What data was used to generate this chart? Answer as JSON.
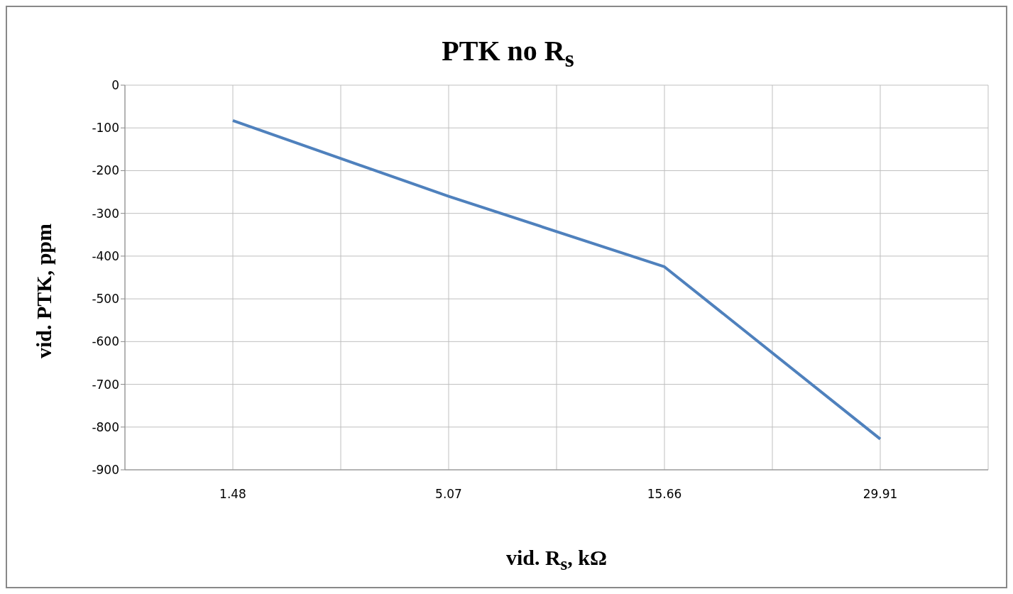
{
  "chart_data": {
    "type": "line",
    "title": "PTK no R$_{s}$",
    "xlabel": "vid. R$_{s}$, kΩ",
    "ylabel": "vid. PTK, ppm",
    "categories": [
      "1.48",
      "5.07",
      "15.66",
      "29.91"
    ],
    "series": [
      {
        "color": "#4f81bd",
        "values": [
          -83,
          -260,
          -425,
          -828
        ]
      }
    ],
    "ylim": [
      -900,
      0
    ],
    "yticks": [
      -900,
      -800,
      -700,
      -600,
      -500,
      -400,
      -300,
      -200,
      -100,
      0
    ],
    "grid": true,
    "marker": "none",
    "line_style": "solid"
  }
}
